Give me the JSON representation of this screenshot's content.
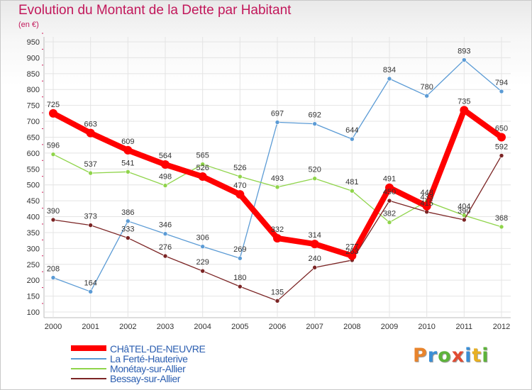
{
  "header": {
    "title": "Evolution du Montant de la Dette par Habitant",
    "subtitle": "(en €)"
  },
  "brand": {
    "letters": [
      "P",
      "r",
      "o",
      "x",
      "i",
      "t",
      "i"
    ],
    "colors": [
      "#e8842c",
      "#3b8fd6",
      "#5db33a",
      "#e14b32",
      "#3b8fd6",
      "#e8b023",
      "#5db33a"
    ]
  },
  "chart_data": {
    "type": "line",
    "title": "Evolution du Montant de la Dette par Habitant",
    "ylabel": "(en €)",
    "xlabel": "",
    "x": [
      2000,
      2001,
      2002,
      2003,
      2004,
      2005,
      2006,
      2007,
      2008,
      2009,
      2010,
      2011,
      2012
    ],
    "ylim": [
      100,
      950
    ],
    "yticks": [
      100,
      150,
      200,
      250,
      300,
      350,
      400,
      450,
      500,
      550,
      600,
      650,
      700,
      750,
      800,
      850,
      900,
      950
    ],
    "grid": true,
    "legend_position": "bottom-left",
    "series": [
      {
        "name": "CHâTEL-DE-NEUVRE",
        "color": "#ff0000",
        "emphasis": true,
        "values": [
          725,
          663,
          609,
          564,
          526,
          470,
          332,
          314,
          277,
          491,
          433,
          735,
          650
        ]
      },
      {
        "name": "La Ferté-Hauterive",
        "color": "#5b9bd5",
        "emphasis": false,
        "values": [
          208,
          164,
          386,
          346,
          306,
          269,
          697,
          692,
          644,
          834,
          780,
          893,
          794
        ]
      },
      {
        "name": "Monétay-sur-Allier",
        "color": "#8fd44a",
        "emphasis": false,
        "values": [
          596,
          537,
          541,
          498,
          565,
          526,
          493,
          520,
          481,
          382,
          448,
          404,
          368
        ]
      },
      {
        "name": "Bessay-sur-Allier",
        "color": "#7b2424",
        "emphasis": false,
        "values": [
          390,
          373,
          333,
          276,
          229,
          180,
          135,
          240,
          263,
          450,
          415,
          390,
          592
        ]
      }
    ]
  }
}
